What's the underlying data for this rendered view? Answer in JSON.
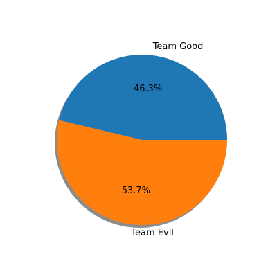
{
  "chart_data": {
    "type": "pie",
    "labels": [
      "Team Good",
      "Team Evil"
    ],
    "values": [
      46.3,
      53.7
    ],
    "percent_labels": [
      "46.3%",
      "53.7%"
    ],
    "colors": [
      "#1f77b4",
      "#ff7f0e"
    ],
    "shadow": true,
    "start_angle_deg": 0,
    "direction": "counterclockwise"
  }
}
